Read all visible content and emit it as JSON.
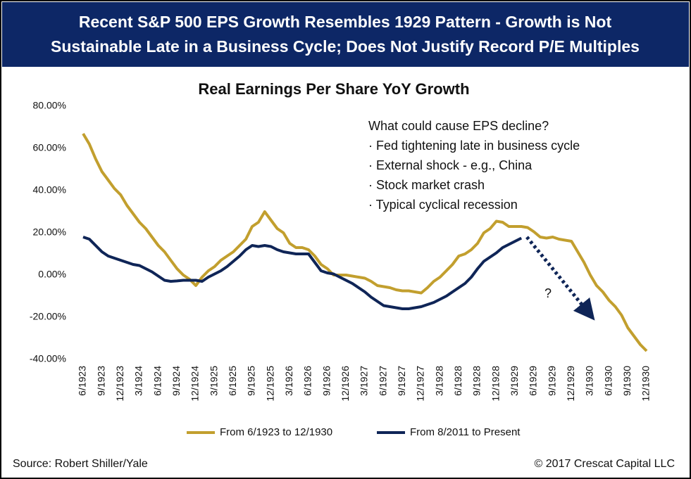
{
  "header": {
    "lines": [
      "Recent S&P 500 EPS Growth Resembles 1929 Pattern - Growth is Not",
      "Sustainable Late in a Business Cycle; Does Not Justify Record P/E Multiples"
    ]
  },
  "chart_data": {
    "type": "line",
    "title": "Real Earnings Per Share YoY Growth",
    "categories": [
      "6/1923",
      null,
      null,
      "9/1923",
      null,
      null,
      "12/1923",
      null,
      null,
      "3/1924",
      null,
      null,
      "6/1924",
      null,
      null,
      "9/1924",
      null,
      null,
      "12/1924",
      null,
      null,
      "3/1925",
      null,
      null,
      "6/1925",
      null,
      null,
      "9/1925",
      null,
      null,
      "12/1925",
      null,
      null,
      "3/1926",
      null,
      null,
      "6/1926",
      null,
      null,
      "9/1926",
      null,
      null,
      "12/1926",
      null,
      null,
      "3/1927",
      null,
      null,
      "6/1927",
      null,
      null,
      "9/1927",
      null,
      null,
      "12/1927",
      null,
      null,
      "3/1928",
      null,
      null,
      "6/1928",
      null,
      null,
      "9/1928",
      null,
      null,
      "12/1928",
      null,
      null,
      "3/1929",
      null,
      null,
      "6/1929",
      null,
      null,
      "9/1929",
      null,
      null,
      "12/1929",
      null,
      null,
      "3/1930",
      null,
      null,
      "6/1930",
      null,
      null,
      "9/1930",
      null,
      null,
      "12/1930"
    ],
    "series": [
      {
        "name": "From 6/1923 to 12/1930",
        "color": "#c29f2e",
        "values": [
          67,
          62,
          55,
          49,
          45,
          41,
          38,
          33,
          29,
          25,
          22,
          18,
          14,
          11,
          7,
          3,
          0,
          -2,
          -5,
          -1,
          2,
          4,
          7,
          9,
          11,
          14,
          17,
          23,
          25,
          30,
          26,
          22,
          20,
          15,
          13,
          13,
          12,
          9,
          5,
          3,
          0,
          0,
          0,
          -0.5,
          -1,
          -1.5,
          -3,
          -5,
          -5.5,
          -6,
          -7,
          -7.5,
          -7.5,
          -8,
          -8.5,
          -6,
          -3,
          -1,
          2,
          5,
          9,
          10,
          12,
          15,
          20,
          22,
          25.5,
          25,
          23,
          23,
          23,
          22.5,
          20.5,
          18,
          17.5,
          18,
          17,
          16.5,
          16,
          11,
          6,
          0,
          -5,
          -8,
          -12,
          -15,
          -19,
          -25,
          -29,
          -33,
          -36
        ]
      },
      {
        "name": "From 8/2011 to Present",
        "color": "#0f2557",
        "values": [
          18,
          17,
          14,
          11,
          9,
          8,
          7,
          6,
          5,
          4.5,
          3,
          1.5,
          -0.5,
          -2.5,
          -3,
          -2.8,
          -2.5,
          -2.5,
          -2.5,
          -3,
          -1,
          0.5,
          2,
          4,
          6.5,
          9,
          12,
          14,
          13.5,
          14,
          13.5,
          12,
          11,
          10.5,
          10,
          10,
          10,
          6,
          2,
          1,
          0.5,
          -1,
          -2.5,
          -4,
          -6,
          -8,
          -10.5,
          -12.5,
          -14.5,
          -15,
          -15.5,
          -16,
          -16,
          -15.5,
          -15,
          -14,
          -13,
          -11.5,
          -10,
          -8,
          -6,
          -4,
          -1,
          3,
          6.5,
          8.5,
          10.5,
          13,
          14.5,
          16,
          17.5,
          null,
          null,
          null,
          null,
          null,
          null,
          null,
          null,
          null,
          null,
          null,
          null,
          null,
          null,
          null,
          null,
          null,
          null,
          null,
          null
        ]
      }
    ],
    "ylim": [
      -40,
      80
    ],
    "yticks": [
      {
        "value": -40,
        "label": "-40.00%"
      },
      {
        "value": -20,
        "label": "-20.00%"
      },
      {
        "value": 0,
        "label": "0.00%"
      },
      {
        "value": 20,
        "label": "20.00%"
      },
      {
        "value": 40,
        "label": "40.00%"
      },
      {
        "value": 60,
        "label": "60.00%"
      },
      {
        "value": 80,
        "label": "80.00%"
      }
    ],
    "grid": false,
    "annotations": {
      "note": [
        "What could cause EPS decline?",
        "· Fed tightening late in business cycle",
        "· External shock - e.g., China",
        "· Stock market crash",
        "· Typical cyclical recession"
      ],
      "question": "?"
    }
  },
  "footer": {
    "source": "Source: Robert Shiller/Yale",
    "copyright": "© 2017 Crescat Capital LLC"
  }
}
